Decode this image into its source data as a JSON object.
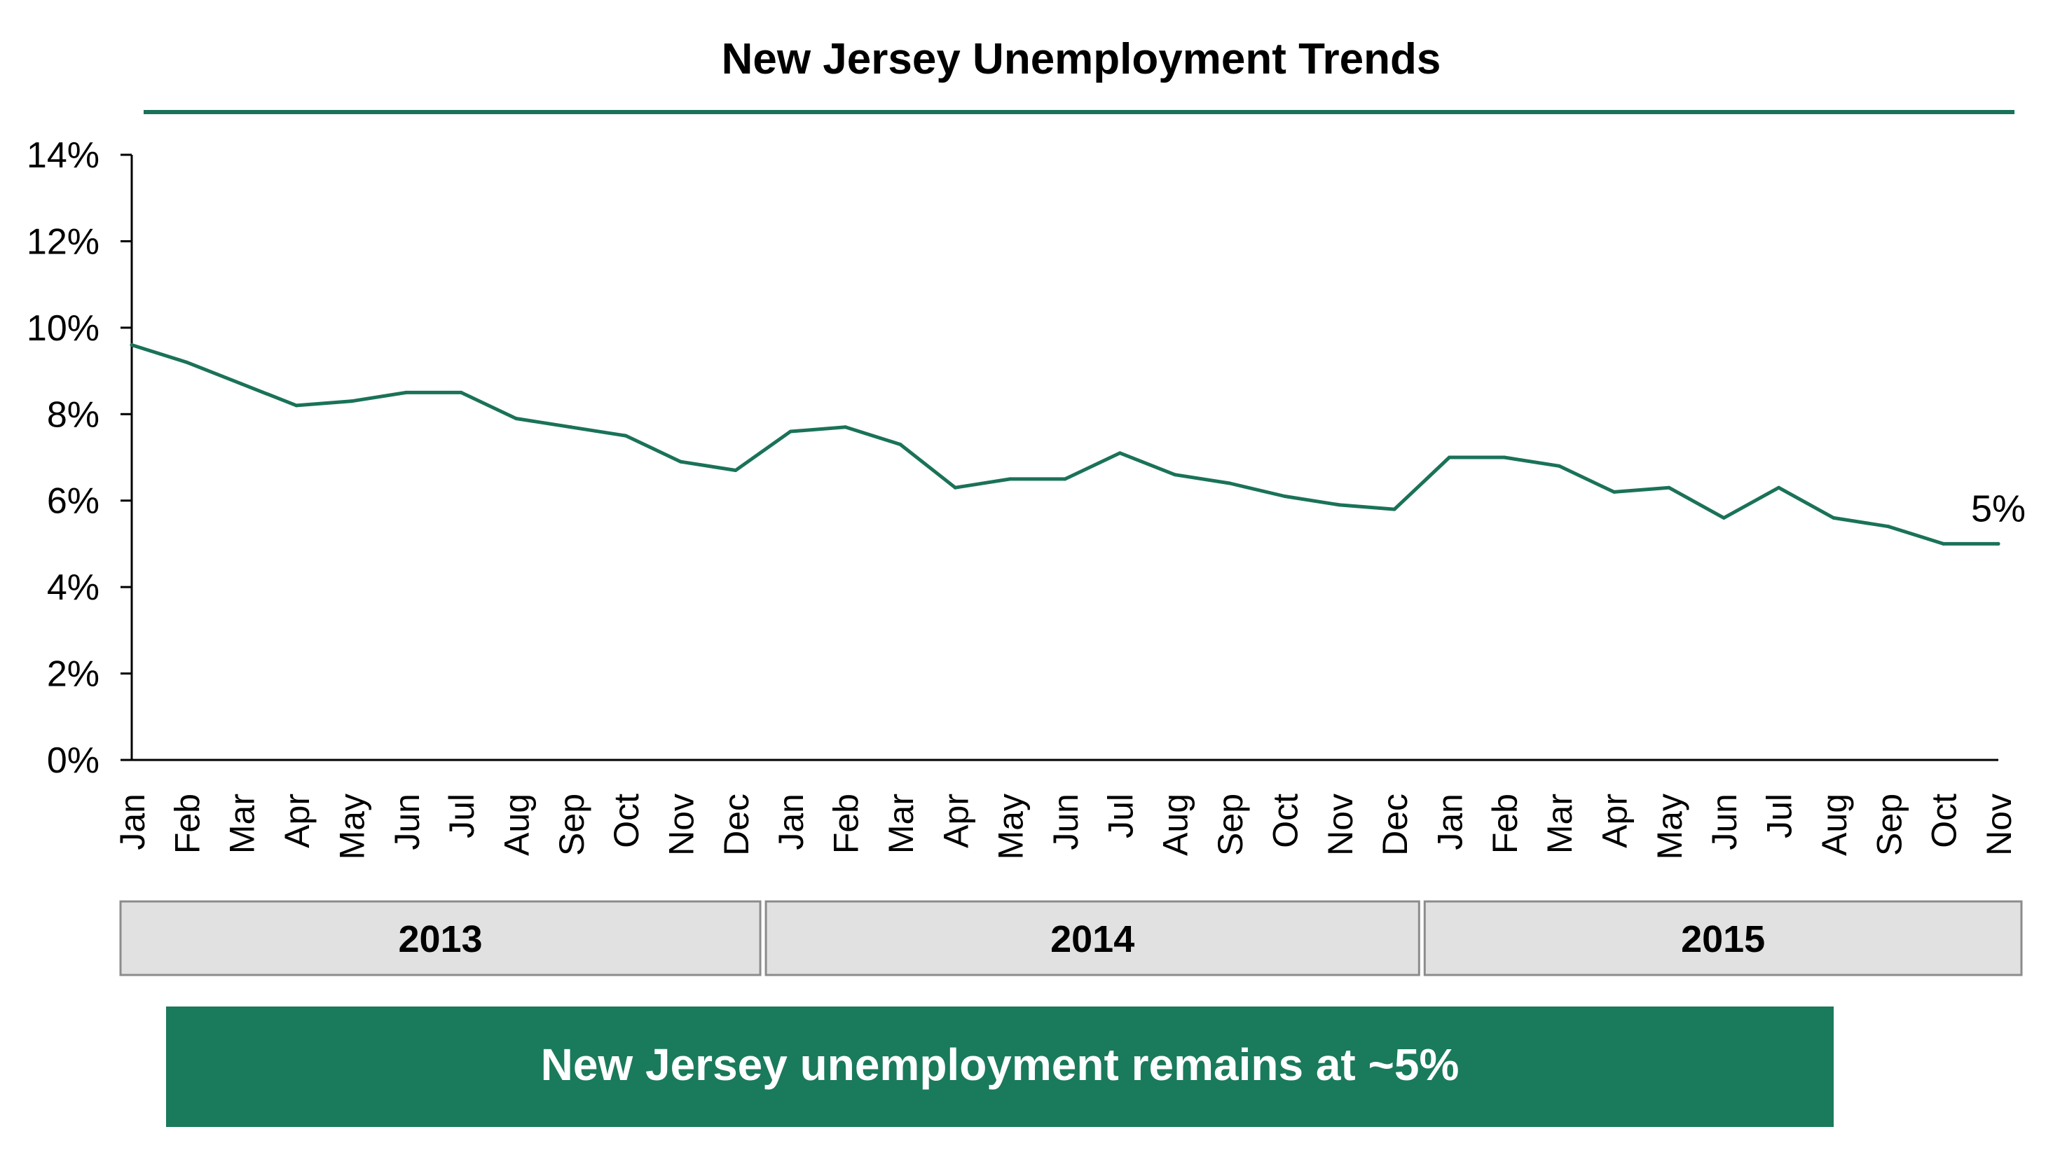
{
  "chart_data": {
    "type": "line",
    "title": "New Jersey Unemployment Trends",
    "xlabel": "",
    "ylabel": "",
    "ylim": [
      0,
      14
    ],
    "y_ticks": [
      "0%",
      "2%",
      "4%",
      "6%",
      "8%",
      "10%",
      "12%",
      "14%"
    ],
    "grid": false,
    "legend": "none",
    "categories": [
      "Jan",
      "Feb",
      "Mar",
      "Apr",
      "May",
      "Jun",
      "Jul",
      "Aug",
      "Sep",
      "Oct",
      "Nov",
      "Dec",
      "Jan",
      "Feb",
      "Mar",
      "Apr",
      "May",
      "Jun",
      "Jul",
      "Aug",
      "Sep",
      "Oct",
      "Nov",
      "Dec",
      "Jan",
      "Feb",
      "Mar",
      "Apr",
      "May",
      "Jun",
      "Jul",
      "Aug",
      "Sep",
      "Oct",
      "Nov"
    ],
    "year_groups": [
      {
        "label": "2013",
        "months": 12
      },
      {
        "label": "2014",
        "months": 12
      },
      {
        "label": "2015",
        "months": 11
      }
    ],
    "series": [
      {
        "values": [
          9.6,
          9.2,
          8.7,
          8.2,
          8.3,
          8.5,
          8.5,
          7.9,
          7.7,
          7.5,
          6.9,
          6.7,
          7.6,
          7.7,
          7.3,
          6.3,
          6.5,
          6.5,
          7.1,
          6.6,
          6.4,
          6.1,
          5.9,
          5.8,
          7.0,
          7.0,
          6.8,
          6.2,
          6.3,
          5.6,
          6.3,
          5.6,
          5.4,
          5.0,
          5.0
        ]
      }
    ],
    "end_label": "5%",
    "line_color": "#1a7258",
    "axis_color": "#000000"
  },
  "callout": {
    "text": "New Jersey unemployment remains at ~5%",
    "background": "#1a7a5c",
    "color": "#ffffff"
  },
  "colors": {
    "title_rule": "#1a7258",
    "year_box_fill": "#e1e1e1",
    "year_box_border": "#8c8c8c"
  }
}
